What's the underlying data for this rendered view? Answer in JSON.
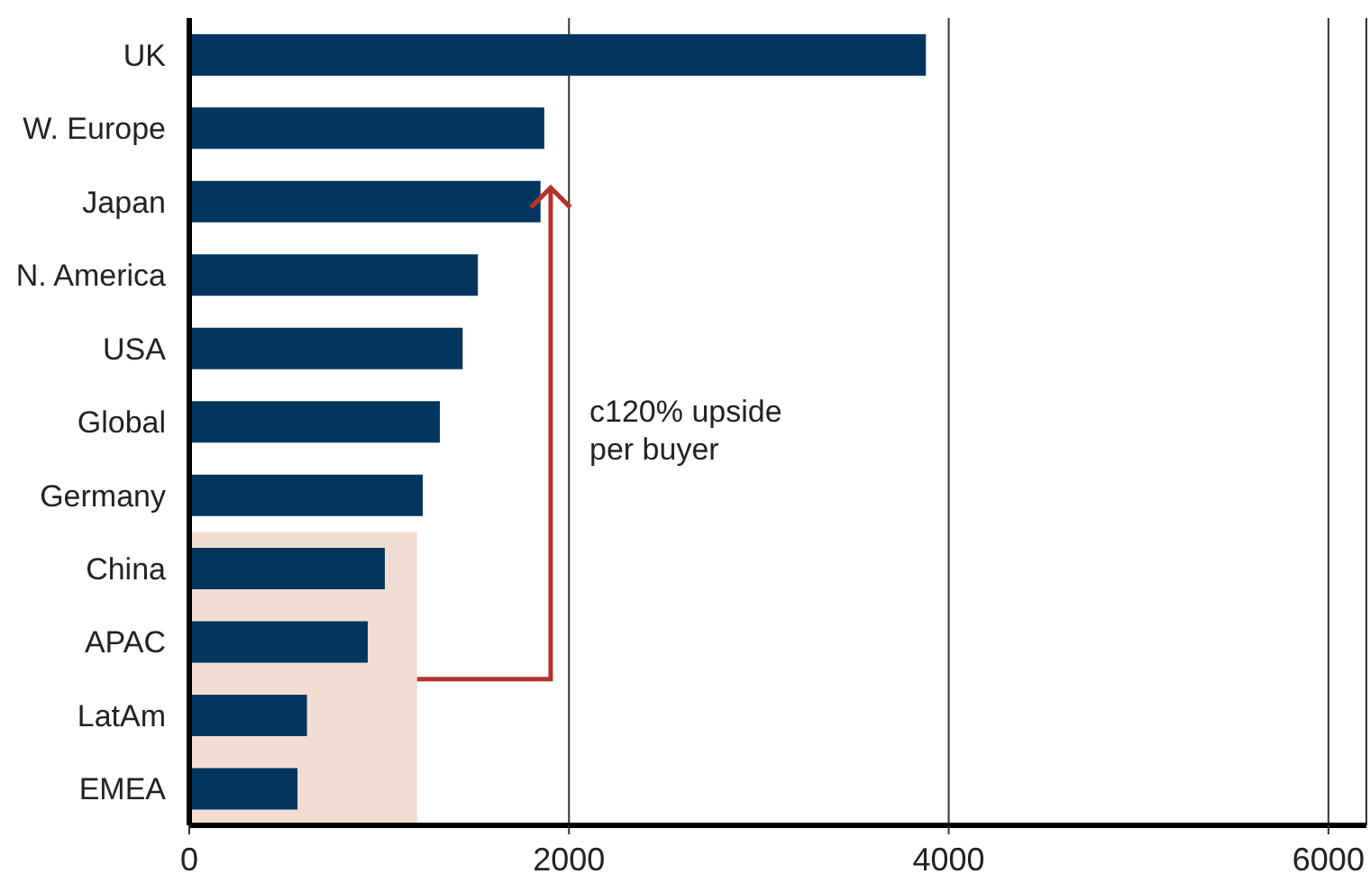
{
  "chart_data": {
    "type": "bar",
    "orientation": "horizontal",
    "categories": [
      "UK",
      "W. Europe",
      "Japan",
      "N. America",
      "USA",
      "Global",
      "Germany",
      "China",
      "APAC",
      "LatAm",
      "EMEA"
    ],
    "values": [
      3880,
      1870,
      1850,
      1520,
      1440,
      1320,
      1230,
      1030,
      940,
      620,
      570
    ],
    "color": "#02365f",
    "xlim": [
      0,
      6200
    ],
    "xticks": [
      0,
      2000,
      4000,
      6000
    ],
    "grid": "x",
    "bands": [
      {
        "axis": "x",
        "from": 0,
        "to": 1200,
        "color": "#f2ddd3"
      }
    ],
    "annotations": [
      "c120% upside per buyer"
    ]
  }
}
